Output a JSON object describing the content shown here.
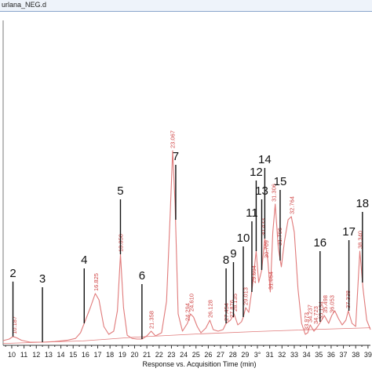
{
  "header": {
    "file_label": "urlana_NEG.d"
  },
  "chart_data": {
    "type": "line",
    "title": "urlana_NEG.d",
    "xlabel": "Response vs. Acquisition Time (min)",
    "ylabel": "",
    "xlim": [
      9.3,
      39.2
    ],
    "ylim": [
      0,
      100
    ],
    "x_ticks": [
      "10",
      "11",
      "12",
      "13",
      "14",
      "15",
      "16",
      "17",
      "18",
      "19",
      "20",
      "21",
      "22",
      "23",
      "24",
      "25",
      "26",
      "27",
      "28",
      "29",
      "3°",
      "31",
      "32",
      "33",
      "34",
      "35",
      "36",
      "37",
      "38",
      "39"
    ],
    "x_tick_values": [
      10,
      11,
      12,
      13,
      14,
      15,
      16,
      17,
      18,
      19,
      20,
      21,
      22,
      23,
      24,
      25,
      26,
      27,
      28,
      29,
      30,
      31,
      32,
      33,
      34,
      35,
      36,
      37,
      38,
      39
    ],
    "line_color": "#e07a7a",
    "grid": false,
    "series": [
      {
        "values": [
          [
            9.3,
            1.5
          ],
          [
            9.8,
            2.0
          ],
          [
            10.1,
            2.8
          ],
          [
            10.4,
            2.4
          ],
          [
            10.8,
            1.6
          ],
          [
            11.5,
            1.0
          ],
          [
            12.5,
            1.0
          ],
          [
            13.5,
            1.2
          ],
          [
            14.5,
            1.6
          ],
          [
            15.2,
            2.2
          ],
          [
            15.6,
            4.0
          ],
          [
            16.0,
            8.0
          ],
          [
            16.4,
            12.0
          ],
          [
            16.8,
            16.5
          ],
          [
            17.1,
            14.5
          ],
          [
            17.5,
            6.0
          ],
          [
            17.9,
            3.5
          ],
          [
            18.3,
            4.5
          ],
          [
            18.6,
            11.0
          ],
          [
            18.85,
            29.0
          ],
          [
            19.1,
            12.0
          ],
          [
            19.4,
            3.2
          ],
          [
            19.8,
            2.2
          ],
          [
            20.2,
            2.0
          ],
          [
            20.6,
            2.0
          ],
          [
            21.0,
            3.0
          ],
          [
            21.35,
            4.5
          ],
          [
            21.7,
            3.0
          ],
          [
            22.2,
            4.0
          ],
          [
            22.6,
            14.0
          ],
          [
            22.9,
            42.0
          ],
          [
            23.1,
            62.0
          ],
          [
            23.3,
            45.0
          ],
          [
            23.55,
            10.0
          ],
          [
            23.9,
            4.5
          ],
          [
            24.3,
            7.0
          ],
          [
            24.55,
            10.0
          ],
          [
            24.8,
            9.0
          ],
          [
            25.1,
            6.0
          ],
          [
            25.4,
            4.0
          ],
          [
            25.8,
            5.5
          ],
          [
            26.13,
            8.0
          ],
          [
            26.4,
            5.0
          ],
          [
            26.8,
            4.5
          ],
          [
            27.2,
            5.0
          ],
          [
            27.45,
            7.0
          ],
          [
            27.8,
            8.0
          ],
          [
            28.1,
            10.0
          ],
          [
            28.4,
            6.5
          ],
          [
            28.7,
            7.5
          ],
          [
            28.85,
            9.0
          ],
          [
            29.05,
            12.0
          ],
          [
            29.3,
            10.5
          ],
          [
            29.6,
            19.0
          ],
          [
            29.9,
            30.0
          ],
          [
            30.1,
            20.0
          ],
          [
            30.35,
            24.0
          ],
          [
            30.6,
            34.0
          ],
          [
            30.85,
            27.0
          ],
          [
            31.05,
            17.0
          ],
          [
            31.25,
            36.0
          ],
          [
            31.45,
            45.0
          ],
          [
            31.7,
            31.0
          ],
          [
            31.95,
            25.0
          ],
          [
            32.2,
            33.0
          ],
          [
            32.5,
            40.0
          ],
          [
            32.76,
            41.0
          ],
          [
            33.0,
            36.0
          ],
          [
            33.3,
            18.0
          ],
          [
            33.6,
            7.0
          ],
          [
            33.9,
            3.5
          ],
          [
            34.1,
            4.0
          ],
          [
            34.3,
            6.5
          ],
          [
            34.6,
            4.5
          ],
          [
            34.9,
            6.0
          ],
          [
            35.15,
            7.5
          ],
          [
            35.45,
            9.5
          ],
          [
            35.8,
            7.0
          ],
          [
            36.05,
            9.5
          ],
          [
            36.3,
            11.0
          ],
          [
            36.6,
            8.5
          ],
          [
            36.9,
            6.5
          ],
          [
            37.2,
            8.0
          ],
          [
            37.4,
            11.0
          ],
          [
            37.7,
            7.0
          ],
          [
            38.0,
            6.0
          ],
          [
            38.34,
            30.0
          ],
          [
            38.6,
            18.0
          ],
          [
            38.9,
            8.0
          ],
          [
            39.2,
            5.0
          ]
        ]
      }
    ],
    "baseline": [
      [
        9.3,
        0.6
      ],
      [
        15.8,
        1.4
      ],
      [
        20.0,
        2.6
      ],
      [
        25.0,
        3.6
      ],
      [
        30.0,
        4.4
      ],
      [
        35.0,
        5.1
      ],
      [
        39.2,
        5.6
      ]
    ],
    "data_labels": [
      {
        "x": 10.187,
        "y": 2.8,
        "text": "10.187"
      },
      {
        "x": 16.825,
        "y": 16.5,
        "text": "16.825"
      },
      {
        "x": 18.85,
        "y": 29.0,
        "text": "18.850"
      },
      {
        "x": 21.358,
        "y": 4.5,
        "text": "21.358"
      },
      {
        "x": 23.067,
        "y": 62.0,
        "text": "23.067"
      },
      {
        "x": 24.294,
        "y": 7.0,
        "text": "24.294"
      },
      {
        "x": 24.61,
        "y": 10.0,
        "text": "24.610"
      },
      {
        "x": 26.128,
        "y": 8.0,
        "text": "26.128"
      },
      {
        "x": 27.454,
        "y": 7.0,
        "text": "27.454"
      },
      {
        "x": 27.876,
        "y": 8.0,
        "text": "27.876"
      },
      {
        "x": 28.135,
        "y": 10.0,
        "text": "28.135"
      },
      {
        "x": 29.013,
        "y": 12.0,
        "text": "29.013"
      },
      {
        "x": 29.694,
        "y": 19.0,
        "text": "29.694"
      },
      {
        "x": 30.433,
        "y": 34.0,
        "text": "30.433"
      },
      {
        "x": 30.709,
        "y": 27.0,
        "text": "30.709"
      },
      {
        "x": 31.054,
        "y": 17.0,
        "text": "31.054"
      },
      {
        "x": 31.306,
        "y": 45.0,
        "text": "31.306"
      },
      {
        "x": 31.796,
        "y": 31.0,
        "text": "31.796"
      },
      {
        "x": 32.764,
        "y": 41.0,
        "text": "32.764"
      },
      {
        "x": 33.973,
        "y": 4.0,
        "text": "33.973"
      },
      {
        "x": 34.237,
        "y": 6.5,
        "text": "34.237"
      },
      {
        "x": 34.723,
        "y": 6.0,
        "text": "34.723"
      },
      {
        "x": 35.134,
        "y": 7.5,
        "text": "35.134"
      },
      {
        "x": 35.498,
        "y": 9.5,
        "text": "35.498"
      },
      {
        "x": 36.053,
        "y": 9.5,
        "text": "36.053"
      },
      {
        "x": 37.338,
        "y": 11.0,
        "text": "37.338"
      },
      {
        "x": 38.34,
        "y": 30.0,
        "text": "38.340"
      }
    ],
    "annotations": [
      {
        "text": "2",
        "x": 10.1,
        "y_value": 2.8
      },
      {
        "text": "3",
        "x": 12.5,
        "y_value": 1.0
      },
      {
        "text": "4",
        "x": 15.9,
        "y_value": 7.0
      },
      {
        "text": "5",
        "x": 18.85,
        "y_value": 29.0
      },
      {
        "text": "6",
        "x": 20.6,
        "y_value": 2.0
      },
      {
        "text": "7",
        "x": 23.35,
        "y_value": 40.0
      },
      {
        "text": "8",
        "x": 27.45,
        "y_value": 7.0
      },
      {
        "text": "9",
        "x": 28.05,
        "y_value": 9.0
      },
      {
        "text": "10",
        "x": 28.85,
        "y_value": 9.0
      },
      {
        "text": "11",
        "x": 29.55,
        "y_value": 17.0
      },
      {
        "text": "12",
        "x": 29.9,
        "y_value": 30.0
      },
      {
        "text": "13",
        "x": 30.35,
        "y_value": 24.0
      },
      {
        "text": "14",
        "x": 30.6,
        "y_value": 34.0
      },
      {
        "text": "15",
        "x": 31.85,
        "y_value": 27.0
      },
      {
        "text": "16",
        "x": 35.1,
        "y_value": 7.5
      },
      {
        "text": "17",
        "x": 37.45,
        "y_value": 11.0
      },
      {
        "text": "18",
        "x": 38.55,
        "y_value": 20.0
      }
    ]
  }
}
